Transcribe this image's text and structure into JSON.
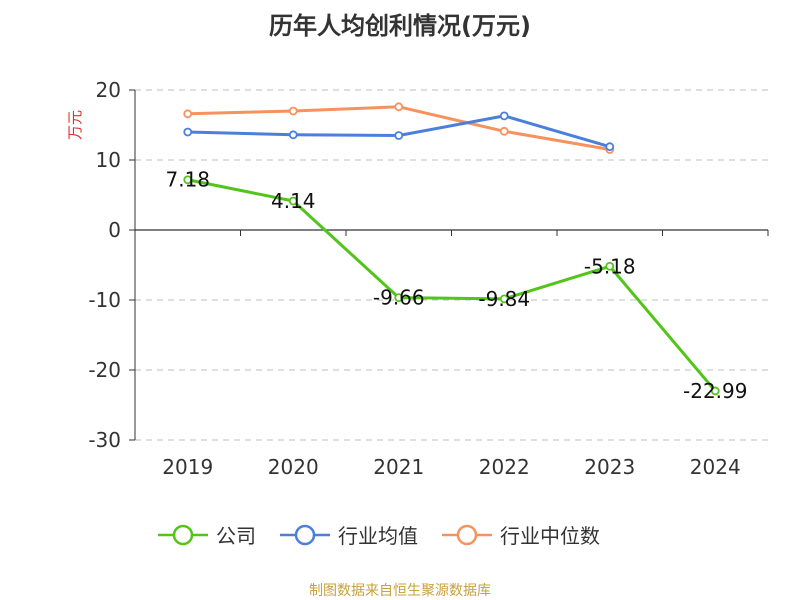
{
  "chart_data": {
    "type": "line",
    "title": "历年人均创利情况(万元)",
    "ylabel": "万元",
    "xlabel": "",
    "categories": [
      "2019",
      "2020",
      "2021",
      "2022",
      "2023",
      "2024"
    ],
    "ylim": [
      -30,
      20
    ],
    "yticks": [
      20,
      10,
      0,
      -10,
      -20,
      -30
    ],
    "grid": true,
    "legend_position": "bottom",
    "series": [
      {
        "name": "公司",
        "color": "#52c41a",
        "values": [
          7.18,
          4.14,
          -9.66,
          -9.84,
          -5.18,
          -22.99
        ],
        "labels": [
          "7.18",
          "4.14",
          "-9.66",
          "-9.84",
          "-5.18",
          "-22.99"
        ]
      },
      {
        "name": "行业均值",
        "color": "#4a7fdb",
        "values": [
          14.0,
          13.6,
          13.5,
          16.3,
          11.9,
          null
        ]
      },
      {
        "name": "行业中位数",
        "color": "#f5925e",
        "values": [
          16.6,
          17.0,
          17.6,
          14.1,
          11.5,
          null
        ]
      }
    ]
  },
  "source_note": "制图数据来自恒生聚源数据库",
  "colors": {
    "title": "#333333",
    "ylabel": "#e03030",
    "source": "#c8a03c",
    "grid": "#cccccc",
    "axis": "#333333"
  }
}
